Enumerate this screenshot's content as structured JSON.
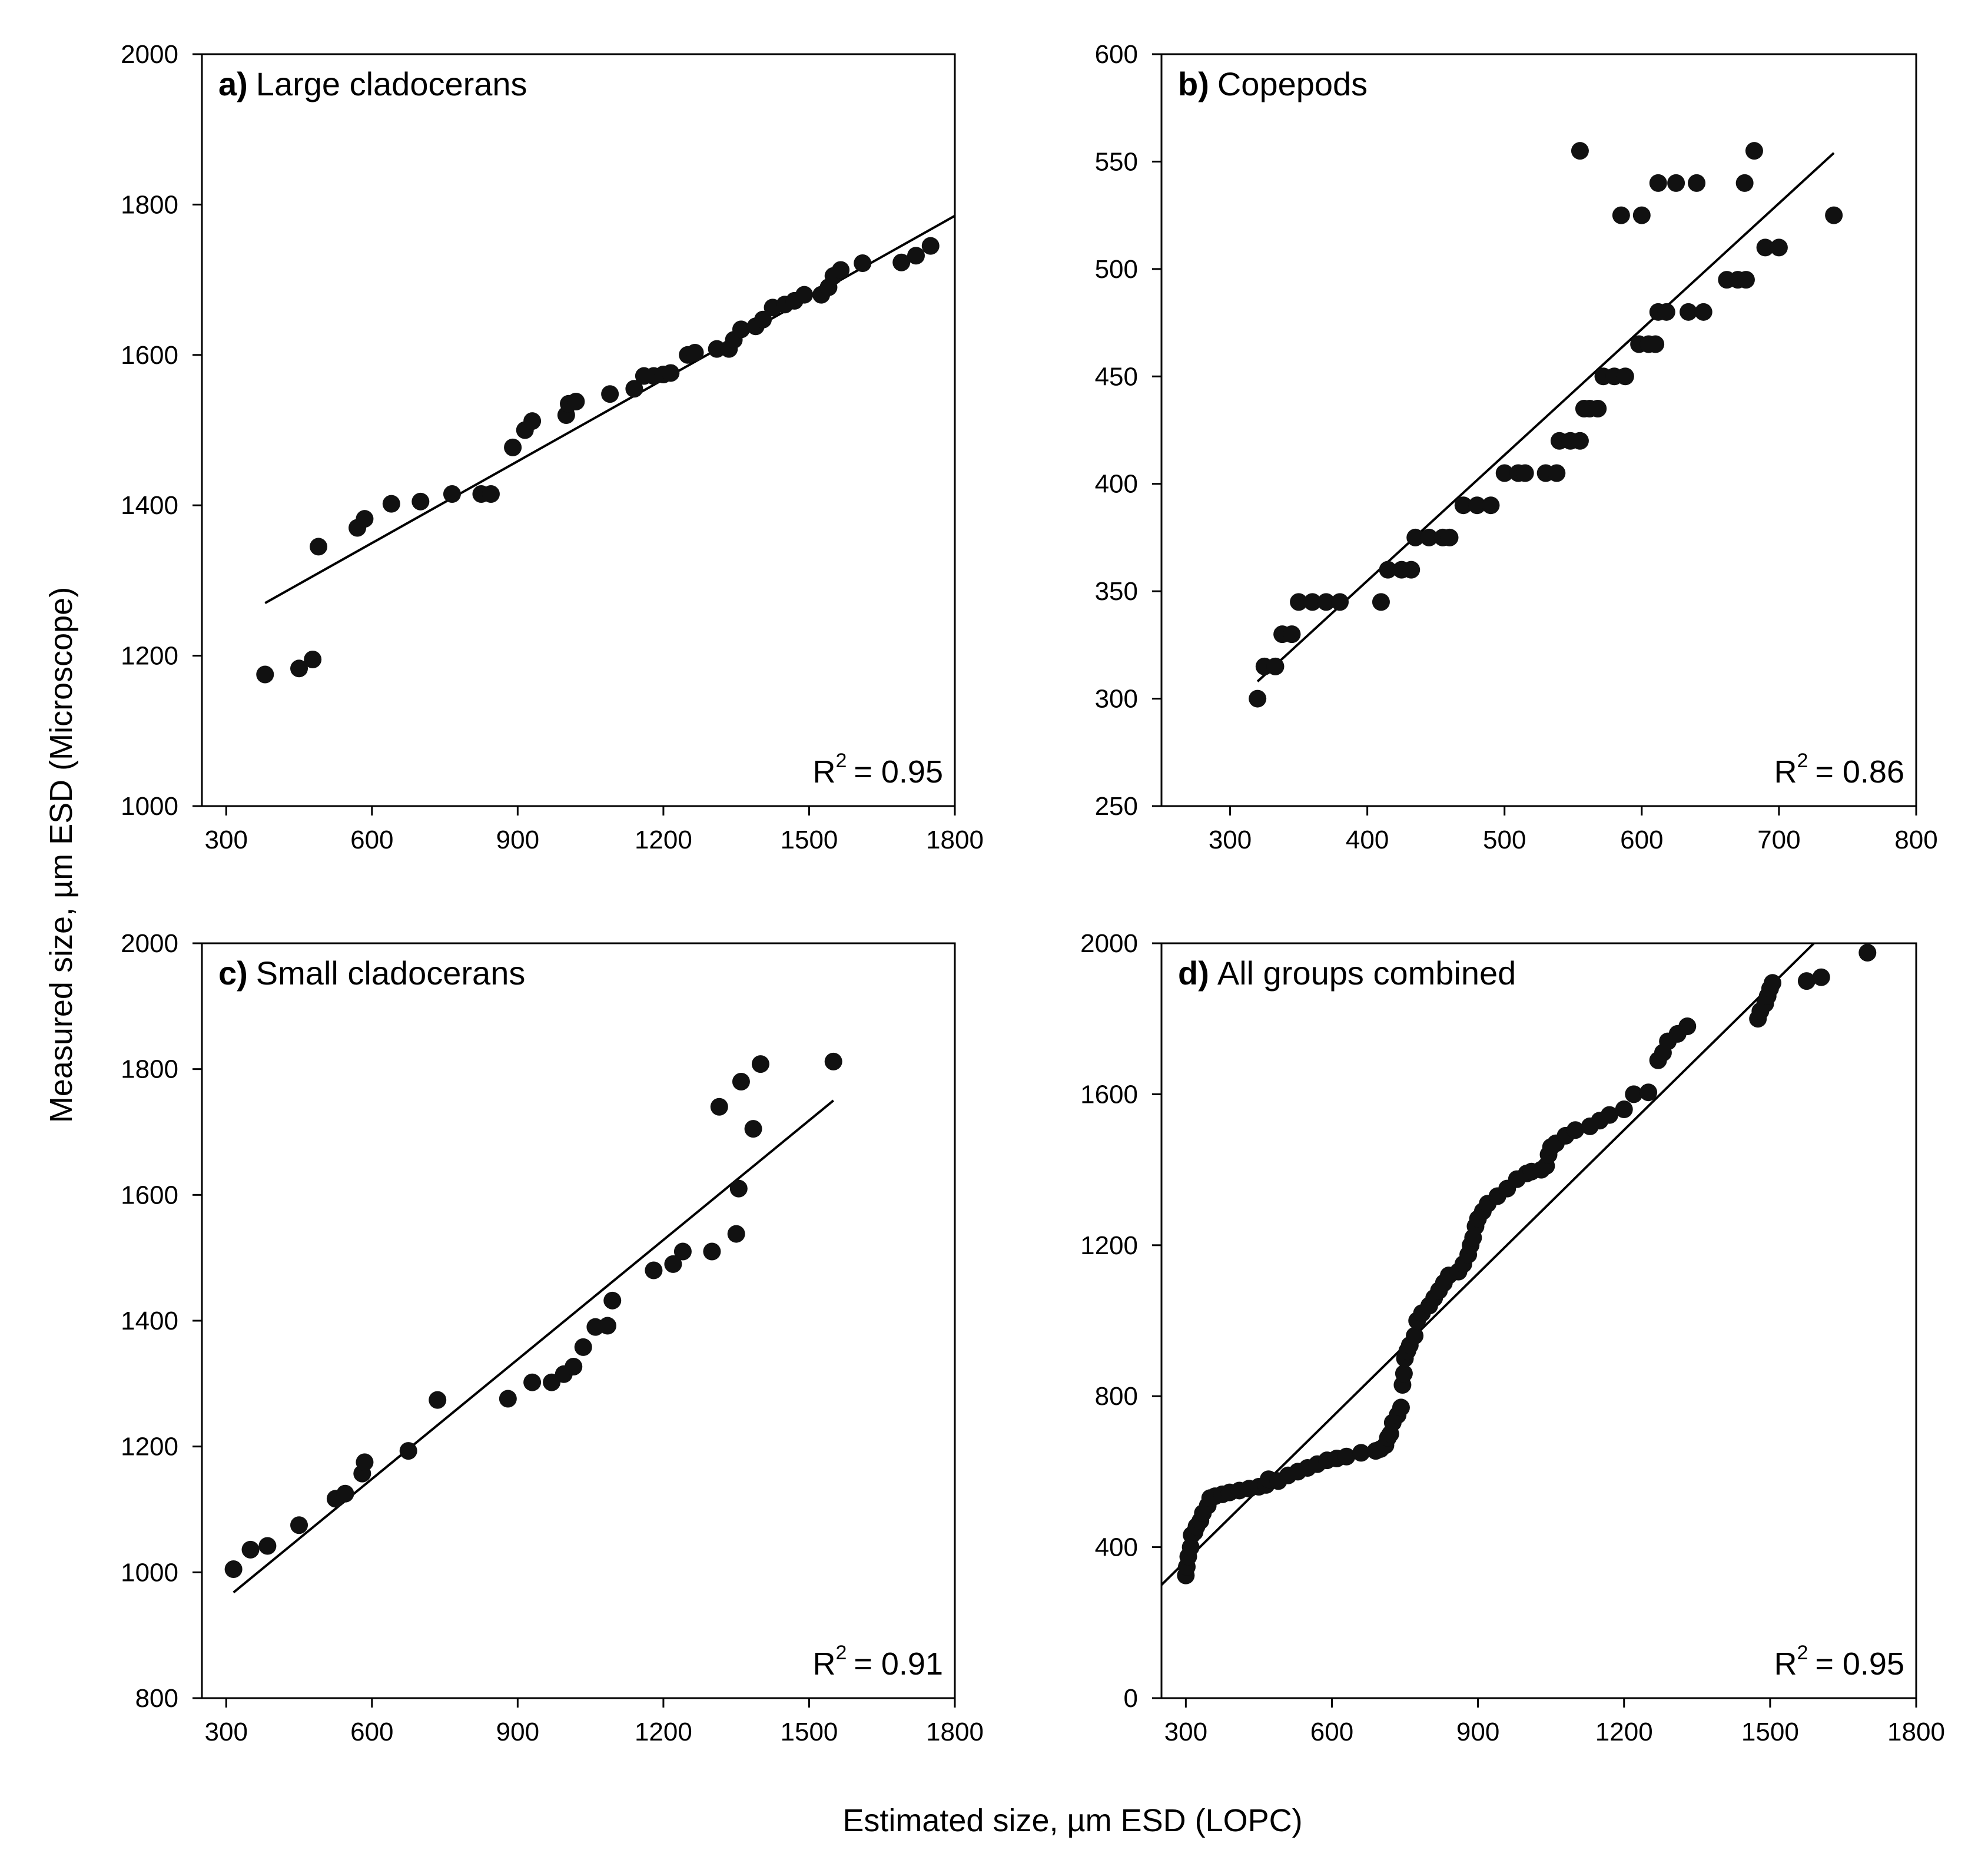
{
  "figure": {
    "ylabel": "Measured size, µm ESD (Microscope)",
    "xlabel": "Estimated size, µm ESD (LOPC)"
  },
  "chart_data": [
    {
      "id": "a",
      "type": "scatter",
      "panel_letter": "a)",
      "title": "Large cladocerans",
      "r2_prefix": "R",
      "r2_sup": "2",
      "r2_value": "= 0.95",
      "xlim": [
        250,
        1800
      ],
      "ylim": [
        1000,
        2000
      ],
      "xticks": [
        300,
        600,
        900,
        1200,
        1500,
        1800
      ],
      "yticks": [
        1000,
        1200,
        1400,
        1600,
        1800,
        2000
      ],
      "fit": [
        [
          380,
          1270
        ],
        [
          1800,
          1785
        ]
      ],
      "points": [
        [
          380,
          1175
        ],
        [
          450,
          1183
        ],
        [
          478,
          1195
        ],
        [
          490,
          1345
        ],
        [
          570,
          1370
        ],
        [
          585,
          1382
        ],
        [
          640,
          1402
        ],
        [
          700,
          1405
        ],
        [
          765,
          1415
        ],
        [
          825,
          1415
        ],
        [
          845,
          1415
        ],
        [
          890,
          1477
        ],
        [
          915,
          1500
        ],
        [
          930,
          1512
        ],
        [
          1000,
          1520
        ],
        [
          1005,
          1535
        ],
        [
          1020,
          1538
        ],
        [
          1090,
          1548
        ],
        [
          1140,
          1555
        ],
        [
          1160,
          1572
        ],
        [
          1180,
          1572
        ],
        [
          1200,
          1574
        ],
        [
          1215,
          1576
        ],
        [
          1250,
          1600
        ],
        [
          1265,
          1603
        ],
        [
          1310,
          1608
        ],
        [
          1335,
          1608
        ],
        [
          1345,
          1620
        ],
        [
          1360,
          1634
        ],
        [
          1390,
          1638
        ],
        [
          1405,
          1647
        ],
        [
          1425,
          1663
        ],
        [
          1450,
          1667
        ],
        [
          1470,
          1672
        ],
        [
          1490,
          1680
        ],
        [
          1525,
          1680
        ],
        [
          1540,
          1690
        ],
        [
          1550,
          1705
        ],
        [
          1565,
          1713
        ],
        [
          1610,
          1722
        ],
        [
          1690,
          1723
        ],
        [
          1720,
          1732
        ],
        [
          1750,
          1745
        ]
      ]
    },
    {
      "id": "b",
      "type": "scatter",
      "panel_letter": "b)",
      "title": "Copepods",
      "r2_prefix": "R",
      "r2_sup": "2",
      "r2_value": "= 0.86",
      "xlim": [
        250,
        800
      ],
      "ylim": [
        250,
        600
      ],
      "xticks": [
        300,
        400,
        500,
        600,
        700,
        800
      ],
      "yticks": [
        250,
        300,
        350,
        400,
        450,
        500,
        550,
        600
      ],
      "fit": [
        [
          320,
          308
        ],
        [
          740,
          554
        ]
      ],
      "points": [
        [
          320,
          300
        ],
        [
          325,
          315
        ],
        [
          333,
          315
        ],
        [
          338,
          330
        ],
        [
          345,
          330
        ],
        [
          350,
          345
        ],
        [
          360,
          345
        ],
        [
          370,
          345
        ],
        [
          380,
          345
        ],
        [
          410,
          345
        ],
        [
          415,
          360
        ],
        [
          425,
          360
        ],
        [
          432,
          360
        ],
        [
          435,
          375
        ],
        [
          445,
          375
        ],
        [
          455,
          375
        ],
        [
          460,
          375
        ],
        [
          470,
          390
        ],
        [
          480,
          390
        ],
        [
          490,
          390
        ],
        [
          500,
          405
        ],
        [
          510,
          405
        ],
        [
          515,
          405
        ],
        [
          530,
          405
        ],
        [
          538,
          405
        ],
        [
          540,
          420
        ],
        [
          548,
          420
        ],
        [
          555,
          420
        ],
        [
          558,
          435
        ],
        [
          562,
          435
        ],
        [
          568,
          435
        ],
        [
          572,
          450
        ],
        [
          580,
          450
        ],
        [
          588,
          450
        ],
        [
          598,
          465
        ],
        [
          605,
          465
        ],
        [
          610,
          465
        ],
        [
          612,
          480
        ],
        [
          618,
          480
        ],
        [
          634,
          480
        ],
        [
          645,
          480
        ],
        [
          612,
          540
        ],
        [
          625,
          540
        ],
        [
          640,
          540
        ],
        [
          662,
          495
        ],
        [
          670,
          495
        ],
        [
          676,
          495
        ],
        [
          690,
          510
        ],
        [
          700,
          510
        ],
        [
          555,
          555
        ],
        [
          585,
          525
        ],
        [
          600,
          525
        ],
        [
          675,
          540
        ],
        [
          682,
          555
        ],
        [
          740,
          525
        ]
      ]
    },
    {
      "id": "c",
      "type": "scatter",
      "panel_letter": "c)",
      "title": "Small cladocerans",
      "r2_prefix": "R",
      "r2_sup": "2",
      "r2_value": "= 0.91",
      "xlim": [
        250,
        1800
      ],
      "ylim": [
        800,
        2000
      ],
      "xticks": [
        300,
        600,
        900,
        1200,
        1500,
        1800
      ],
      "yticks": [
        800,
        1000,
        1200,
        1400,
        1600,
        1800,
        2000
      ],
      "fit": [
        [
          315,
          968
        ],
        [
          1550,
          1750
        ]
      ],
      "points": [
        [
          315,
          1005
        ],
        [
          350,
          1036
        ],
        [
          385,
          1042
        ],
        [
          450,
          1075
        ],
        [
          525,
          1117
        ],
        [
          545,
          1125
        ],
        [
          580,
          1157
        ],
        [
          585,
          1175
        ],
        [
          675,
          1193
        ],
        [
          735,
          1274
        ],
        [
          880,
          1276
        ],
        [
          930,
          1302
        ],
        [
          970,
          1302
        ],
        [
          995,
          1315
        ],
        [
          1015,
          1327
        ],
        [
          1035,
          1358
        ],
        [
          1060,
          1390
        ],
        [
          1085,
          1392
        ],
        [
          1095,
          1432
        ],
        [
          1180,
          1480
        ],
        [
          1220,
          1490
        ],
        [
          1240,
          1510
        ],
        [
          1300,
          1510
        ],
        [
          1350,
          1538
        ],
        [
          1355,
          1610
        ],
        [
          1315,
          1740
        ],
        [
          1360,
          1780
        ],
        [
          1385,
          1705
        ],
        [
          1400,
          1808
        ],
        [
          1550,
          1812
        ]
      ]
    },
    {
      "id": "d",
      "type": "scatter",
      "panel_letter": "d)",
      "title": "All groups combined",
      "r2_prefix": "R",
      "r2_sup": "2",
      "r2_value": "= 0.95",
      "xlim": [
        250,
        1800
      ],
      "ylim": [
        0,
        2000
      ],
      "xticks": [
        300,
        600,
        900,
        1200,
        1500,
        1800
      ],
      "yticks": [
        0,
        400,
        800,
        1200,
        1600,
        2000
      ],
      "fit": [
        [
          250,
          300
        ],
        [
          1590,
          2000
        ]
      ],
      "points": [
        [
          300,
          325
        ],
        [
          302,
          348
        ],
        [
          305,
          375
        ],
        [
          310,
          400
        ],
        [
          312,
          432
        ],
        [
          318,
          440
        ],
        [
          322,
          455
        ],
        [
          330,
          470
        ],
        [
          335,
          490
        ],
        [
          345,
          510
        ],
        [
          350,
          530
        ],
        [
          360,
          535
        ],
        [
          375,
          540
        ],
        [
          390,
          545
        ],
        [
          410,
          550
        ],
        [
          430,
          555
        ],
        [
          450,
          560
        ],
        [
          465,
          565
        ],
        [
          470,
          580
        ],
        [
          490,
          575
        ],
        [
          510,
          590
        ],
        [
          530,
          600
        ],
        [
          550,
          610
        ],
        [
          570,
          620
        ],
        [
          590,
          630
        ],
        [
          610,
          635
        ],
        [
          630,
          640
        ],
        [
          660,
          650
        ],
        [
          690,
          655
        ],
        [
          700,
          660
        ],
        [
          710,
          670
        ],
        [
          715,
          690
        ],
        [
          720,
          700
        ],
        [
          725,
          730
        ],
        [
          735,
          750
        ],
        [
          742,
          770
        ],
        [
          745,
          830
        ],
        [
          748,
          860
        ],
        [
          750,
          900
        ],
        [
          755,
          920
        ],
        [
          760,
          935
        ],
        [
          770,
          960
        ],
        [
          775,
          1000
        ],
        [
          785,
          1020
        ],
        [
          800,
          1040
        ],
        [
          810,
          1060
        ],
        [
          820,
          1080
        ],
        [
          830,
          1100
        ],
        [
          840,
          1120
        ],
        [
          860,
          1130
        ],
        [
          870,
          1150
        ],
        [
          880,
          1175
        ],
        [
          885,
          1200
        ],
        [
          890,
          1220
        ],
        [
          895,
          1250
        ],
        [
          900,
          1270
        ],
        [
          910,
          1290
        ],
        [
          920,
          1310
        ],
        [
          940,
          1330
        ],
        [
          960,
          1350
        ],
        [
          980,
          1375
        ],
        [
          1000,
          1390
        ],
        [
          1010,
          1395
        ],
        [
          1030,
          1400
        ],
        [
          1040,
          1410
        ],
        [
          1045,
          1440
        ],
        [
          1050,
          1460
        ],
        [
          1060,
          1470
        ],
        [
          1080,
          1490
        ],
        [
          1100,
          1505
        ],
        [
          1130,
          1515
        ],
        [
          1150,
          1530
        ],
        [
          1170,
          1545
        ],
        [
          1200,
          1560
        ],
        [
          1220,
          1600
        ],
        [
          1250,
          1605
        ],
        [
          1270,
          1690
        ],
        [
          1280,
          1710
        ],
        [
          1290,
          1740
        ],
        [
          1310,
          1760
        ],
        [
          1330,
          1780
        ],
        [
          1475,
          1800
        ],
        [
          1480,
          1820
        ],
        [
          1490,
          1840
        ],
        [
          1495,
          1860
        ],
        [
          1500,
          1880
        ],
        [
          1505,
          1895
        ],
        [
          1575,
          1900
        ],
        [
          1605,
          1910
        ],
        [
          1700,
          1975
        ]
      ]
    }
  ]
}
